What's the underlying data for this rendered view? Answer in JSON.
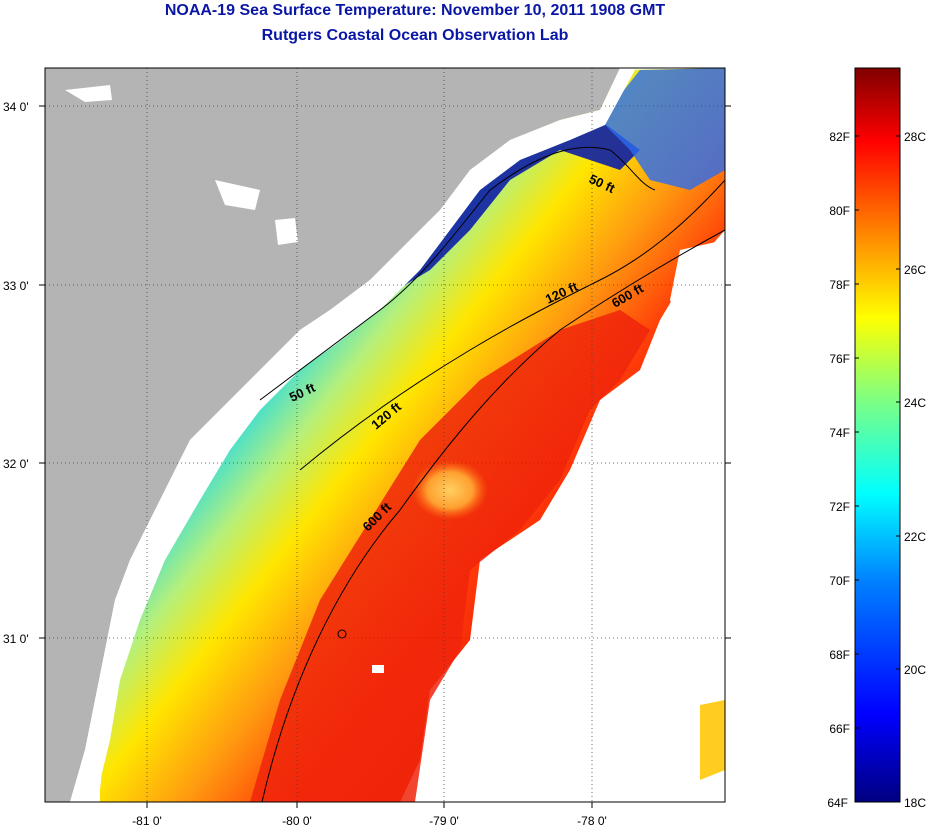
{
  "title": "NOAA-19 Sea Surface Temperature:  November 10, 2011 1908 GMT",
  "subtitle": "Rutgers Coastal Ocean Observation Lab",
  "map": {
    "lat_labels": [
      "34 0'",
      "33 0'",
      "32 0'",
      "31 0'"
    ],
    "lon_labels": [
      "-81 0'",
      "-80 0'",
      "-79 0'",
      "-78 0'"
    ],
    "depth_contours": [
      {
        "label": "50 ft"
      },
      {
        "label": "50 ft"
      },
      {
        "label": "120 ft"
      },
      {
        "label": "120 ft"
      },
      {
        "label": "600 ft"
      },
      {
        "label": "600 ft"
      }
    ],
    "colors": {
      "land": "#b4b4b4",
      "no_data": "#ffffff",
      "grid": "#555555"
    }
  },
  "colorbar": {
    "fahrenheit_labels": [
      "82F",
      "80F",
      "78F",
      "76F",
      "74F",
      "72F",
      "70F",
      "68F",
      "66F",
      "64F"
    ],
    "celsius_labels": [
      "28C",
      "26C",
      "24C",
      "22C",
      "20C",
      "18C"
    ],
    "colormap": [
      "#000080",
      "#0000ff",
      "#0080ff",
      "#00ffff",
      "#80ff80",
      "#ffff00",
      "#ff8000",
      "#ff0000",
      "#800000"
    ]
  }
}
